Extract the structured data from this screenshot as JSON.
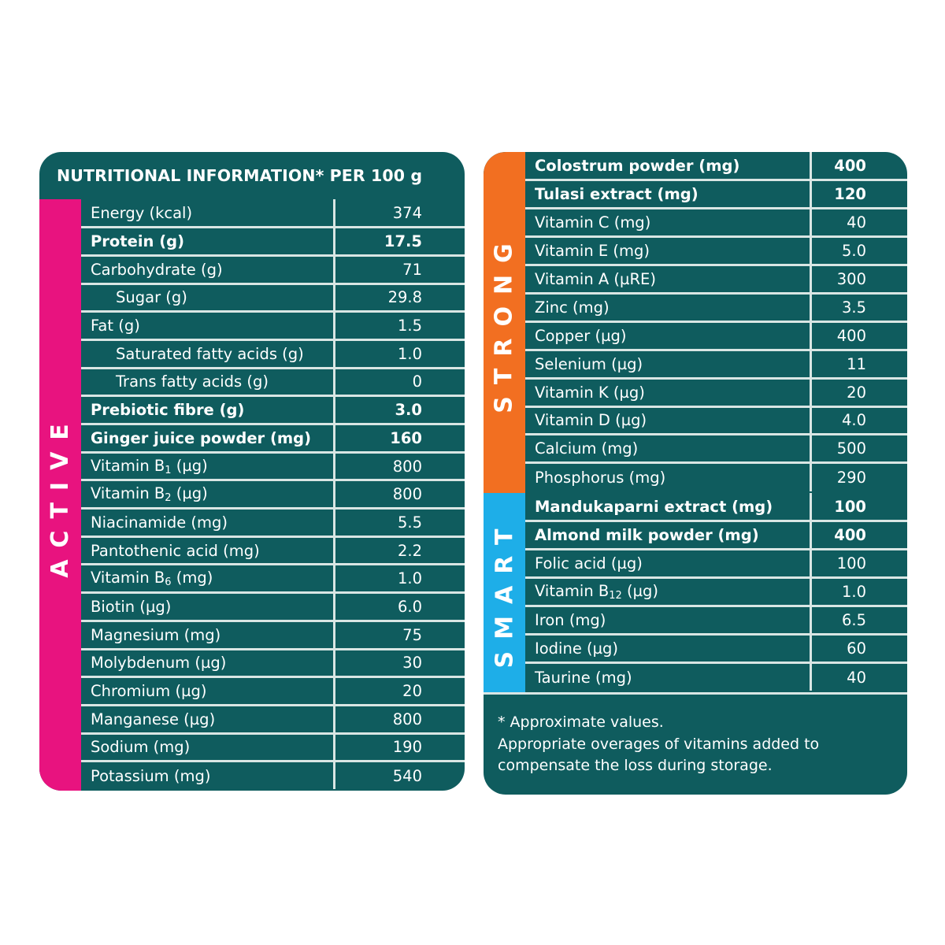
{
  "left": {
    "title": "NUTRITIONAL INFORMATION* PER 100 g",
    "band": {
      "label": "ACTIVE",
      "color": "#e8137f"
    },
    "rows": [
      {
        "name": "Energy (kcal)",
        "value": "374"
      },
      {
        "name": "Protein (g)",
        "value": "17.5",
        "bold": true
      },
      {
        "name": "Carbohydrate (g)",
        "value": "71"
      },
      {
        "name": "Sugar (g)",
        "value": "29.8",
        "indent": true
      },
      {
        "name": "Fat (g)",
        "value": "1.5"
      },
      {
        "name": "Saturated fatty acids (g)",
        "value": "1.0",
        "indent": true
      },
      {
        "name": "Trans fatty acids (g)",
        "value": "0",
        "indent": true
      },
      {
        "name": "Prebiotic fibre (g)",
        "value": "3.0",
        "bold": true
      },
      {
        "name": "Ginger juice powder (mg)",
        "value": "160",
        "bold": true
      },
      {
        "name": "Vitamin B",
        "sub": "1",
        "unit": " (µg)",
        "value": "800"
      },
      {
        "name": "Vitamin B",
        "sub": "2",
        "unit": " (µg)",
        "value": "800"
      },
      {
        "name": "Niacinamide (mg)",
        "value": "5.5"
      },
      {
        "name": "Pantothenic acid (mg)",
        "value": "2.2"
      },
      {
        "name": "Vitamin B",
        "sub": "6",
        "unit": " (mg)",
        "value": "1.0"
      },
      {
        "name": "Biotin (µg)",
        "value": "6.0"
      },
      {
        "name": "Magnesium (mg)",
        "value": "75"
      },
      {
        "name": "Molybdenum (µg)",
        "value": "30"
      },
      {
        "name": "Chromium (µg)",
        "value": "20"
      },
      {
        "name": "Manganese (µg)",
        "value": "800"
      },
      {
        "name": "Sodium (mg)",
        "value": "190"
      },
      {
        "name": "Potassium (mg)",
        "value": "540"
      }
    ]
  },
  "right": {
    "strong": {
      "band": {
        "label": "STRONG",
        "color": "#f26f21"
      },
      "rows": [
        {
          "name": "Colostrum powder (mg)",
          "value": "400",
          "bold": true
        },
        {
          "name": "Tulasi extract (mg)",
          "value": "120",
          "bold": true
        },
        {
          "name": "Vitamin C (mg)",
          "value": "40"
        },
        {
          "name": "Vitamin E (mg)",
          "value": "5.0"
        },
        {
          "name": "Vitamin A (µRE)",
          "value": "300"
        },
        {
          "name": "Zinc (mg)",
          "value": "3.5"
        },
        {
          "name": "Copper (µg)",
          "value": "400"
        },
        {
          "name": "Selenium (µg)",
          "value": "11"
        },
        {
          "name": "Vitamin K (µg)",
          "value": "20"
        },
        {
          "name": "Vitamin D (µg)",
          "value": "4.0"
        },
        {
          "name": "Calcium (mg)",
          "value": "500"
        },
        {
          "name": "Phosphorus (mg)",
          "value": "290"
        }
      ]
    },
    "smart": {
      "band": {
        "label": "SMART",
        "color": "#1eaee8"
      },
      "rows": [
        {
          "name": "Mandukaparni extract (mg)",
          "value": "100",
          "bold": true
        },
        {
          "name": "Almond milk powder (mg)",
          "value": "400",
          "bold": true
        },
        {
          "name": "Folic acid (µg)",
          "value": "100"
        },
        {
          "name": "Vitamin B",
          "sub": "12",
          "unit": " (µg)",
          "value": "1.0"
        },
        {
          "name": "Iron (mg)",
          "value": "6.5"
        },
        {
          "name": "Iodine (µg)",
          "value": "60"
        },
        {
          "name": "Taurine (mg)",
          "value": "40"
        }
      ]
    },
    "notes": [
      "* Approximate values.",
      "Appropriate overages of vitamins added to compensate the loss during storage."
    ]
  },
  "colors": {
    "panel": "#0f5c5e",
    "divider": "#d9e6e4"
  }
}
